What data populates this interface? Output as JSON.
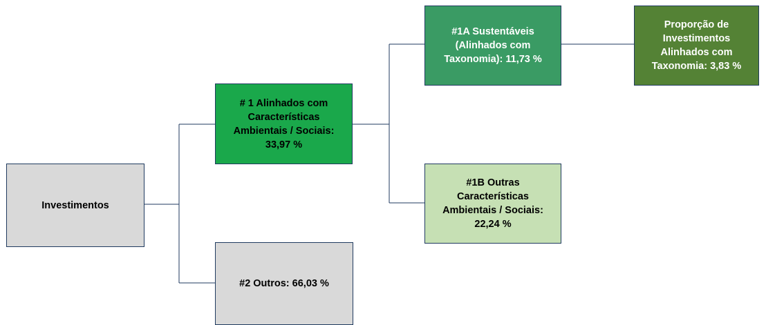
{
  "nodes": [
    {
      "lines": [
        "Investimentos"
      ]
    },
    {
      "lines": [
        "# 1 Alinhados com",
        "Características",
        "Ambientais / Sociais:",
        "33,97 %"
      ]
    },
    {
      "lines": [
        "#2 Outros: 66,03 %"
      ]
    },
    {
      "lines": [
        "#1A Sustentáveis",
        "(Alinhados com",
        "Taxonomia): 11,73 %"
      ]
    },
    {
      "lines": [
        "Proporção de",
        "Investimentos",
        "Alinhados com",
        "Taxonomia: 3,83 %"
      ]
    },
    {
      "lines": [
        "#1B Outras",
        "Características",
        "Ambientais / Sociais:",
        "22,24 %"
      ]
    }
  ]
}
